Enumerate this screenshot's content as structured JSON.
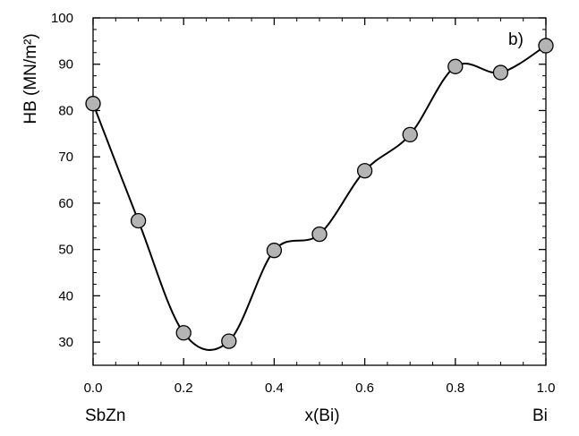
{
  "chart_data": {
    "type": "line",
    "panel_label": "b)",
    "xlabel": "x(Bi)",
    "ylabel": "HB (MN/m²)",
    "x_end_labels": {
      "left": "SbZn",
      "right": "Bi"
    },
    "xlim": [
      0.0,
      1.0
    ],
    "ylim": [
      25,
      100
    ],
    "x_ticks": [
      "0.0",
      "0.2",
      "0.4",
      "0.6",
      "0.8",
      "1.0"
    ],
    "y_ticks": [
      "30",
      "40",
      "50",
      "60",
      "70",
      "80",
      "90",
      "100"
    ],
    "x": [
      0.0,
      0.1,
      0.2,
      0.3,
      0.4,
      0.5,
      0.6,
      0.7,
      0.8,
      0.9,
      1.0
    ],
    "y": [
      81.5,
      56.2,
      32.0,
      30.2,
      49.8,
      53.3,
      67.0,
      74.8,
      89.5,
      88.2,
      94.0
    ],
    "grid": false,
    "colors": {
      "marker_fill": "#b4b4b4",
      "marker_stroke": "#000000",
      "line": "#000000"
    }
  }
}
